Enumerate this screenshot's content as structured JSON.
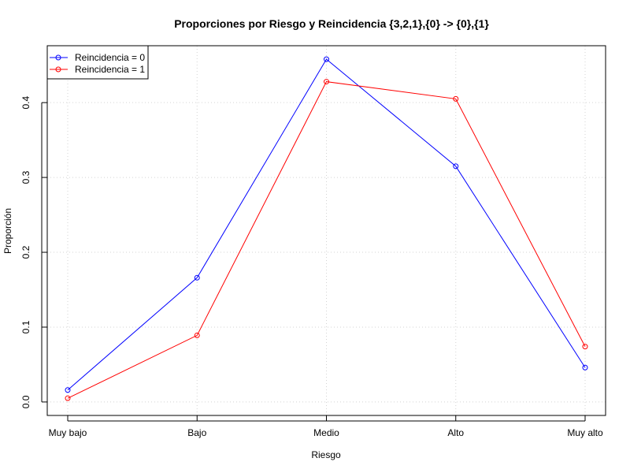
{
  "chart_data": {
    "type": "line",
    "title": "Proporciones por Riesgo y Reincidencia {3,2,1},{0} -> {0},{1}",
    "xlabel": "Riesgo",
    "ylabel": "Proporción",
    "categories": [
      "Muy bajo",
      "Bajo",
      "Medio",
      "Alto",
      "Muy alto"
    ],
    "yticks": [
      "0.0",
      "0.1",
      "0.2",
      "0.3",
      "0.4"
    ],
    "ylim": [
      -0.018,
      0.476
    ],
    "grid": true,
    "legend_position": "top-left",
    "series": [
      {
        "name": "Reincidencia = 0",
        "color": "#0000ff",
        "values": [
          0.016,
          0.166,
          0.458,
          0.315,
          0.046
        ]
      },
      {
        "name": "Reincidencia = 1",
        "color": "#ff0000",
        "values": [
          0.005,
          0.089,
          0.428,
          0.405,
          0.074
        ]
      }
    ]
  }
}
